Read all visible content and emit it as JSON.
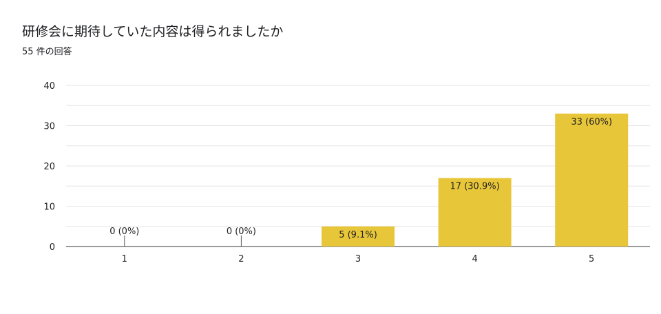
{
  "header": {
    "title": "研修会に期待していた内容は得られましたか",
    "response_count": "55 件の回答"
  },
  "colors": {
    "bar": "#e8c63a",
    "grid": "#e6e6e6",
    "axis": "#333333"
  },
  "chart_data": {
    "type": "bar",
    "title": "",
    "xlabel": "",
    "ylabel": "",
    "categories": [
      "1",
      "2",
      "3",
      "4",
      "5"
    ],
    "values": [
      0,
      0,
      5,
      17,
      33
    ],
    "data_labels": [
      "0 (0%)",
      "0 (0%)",
      "5 (9.1%)",
      "17 (30.9%)",
      "33 (60%)"
    ],
    "ylim": [
      0,
      40
    ],
    "yticks": [
      0,
      10,
      20,
      30,
      40
    ],
    "grid": true,
    "legend": "none"
  }
}
